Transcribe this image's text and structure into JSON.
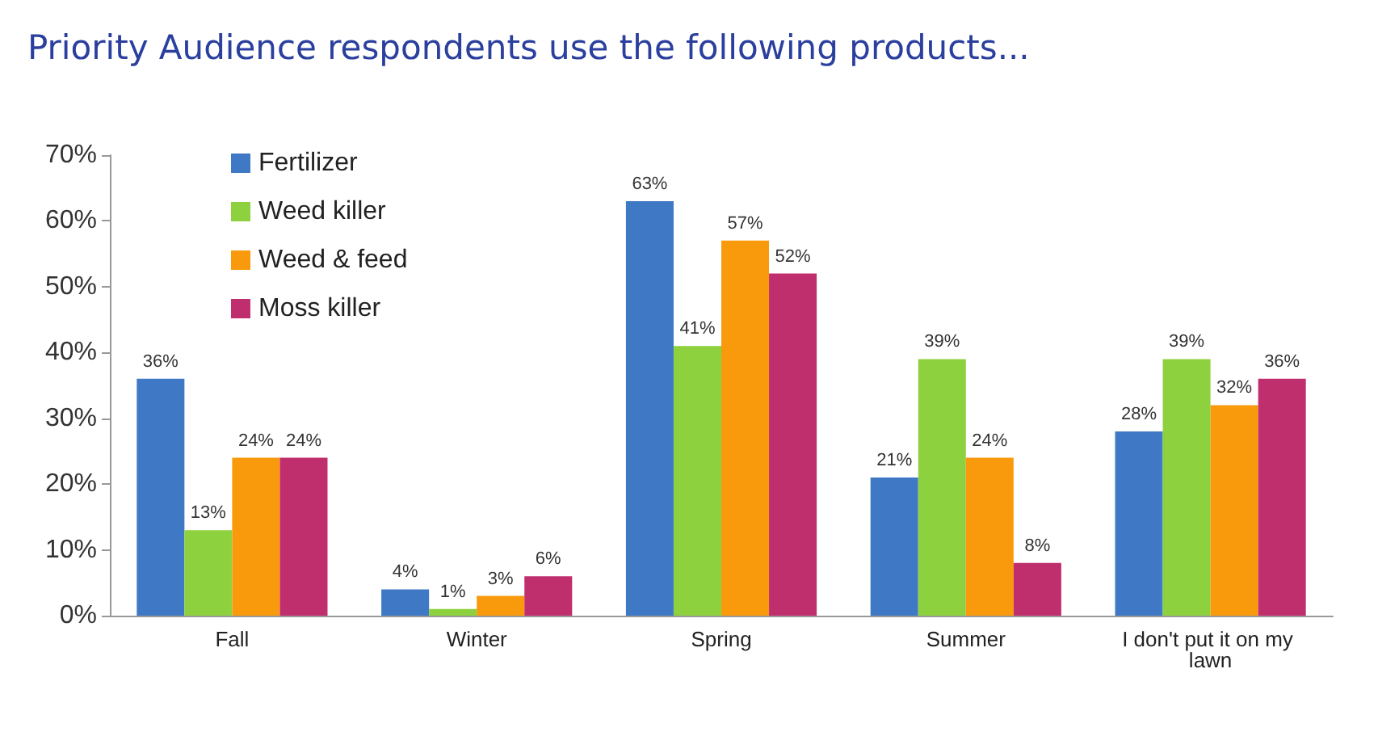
{
  "chart_data": {
    "type": "bar",
    "title": "Priority Audience respondents use the following products...",
    "categories": [
      "Fall",
      "Winter",
      "Spring",
      "Summer",
      "I don't put it on my lawn"
    ],
    "series": [
      {
        "name": "Fertilizer",
        "color": "#3f78c5",
        "values": [
          36,
          4,
          63,
          21,
          28
        ],
        "value_labels": [
          "36%",
          "4%",
          "63%",
          "21%",
          "28%"
        ]
      },
      {
        "name": "Weed killer",
        "color": "#8ed13e",
        "values": [
          13,
          1,
          41,
          39,
          39
        ],
        "value_labels": [
          "13%",
          "1%",
          "41%",
          "39%",
          "39%"
        ]
      },
      {
        "name": "Weed & feed",
        "color": "#f89a0c",
        "values": [
          24,
          3,
          57,
          24,
          32
        ],
        "value_labels": [
          "24%",
          "3%",
          "57%",
          "24%",
          "32%"
        ]
      },
      {
        "name": "Moss killer",
        "color": "#c02f6d",
        "values": [
          24,
          6,
          52,
          8,
          36
        ],
        "value_labels": [
          "24%",
          "6%",
          "52%",
          "8%",
          "36%"
        ]
      }
    ],
    "ylim": [
      0,
      70
    ],
    "yticks": [
      {
        "value": 0,
        "label": "0%"
      },
      {
        "value": 10,
        "label": "10%"
      },
      {
        "value": 20,
        "label": "20%"
      },
      {
        "value": 30,
        "label": "30%"
      },
      {
        "value": 40,
        "label": "40%"
      },
      {
        "value": 50,
        "label": "50%"
      },
      {
        "value": 60,
        "label": "60%"
      },
      {
        "value": 70,
        "label": "70%"
      }
    ],
    "grid": false,
    "legend": "top left"
  }
}
